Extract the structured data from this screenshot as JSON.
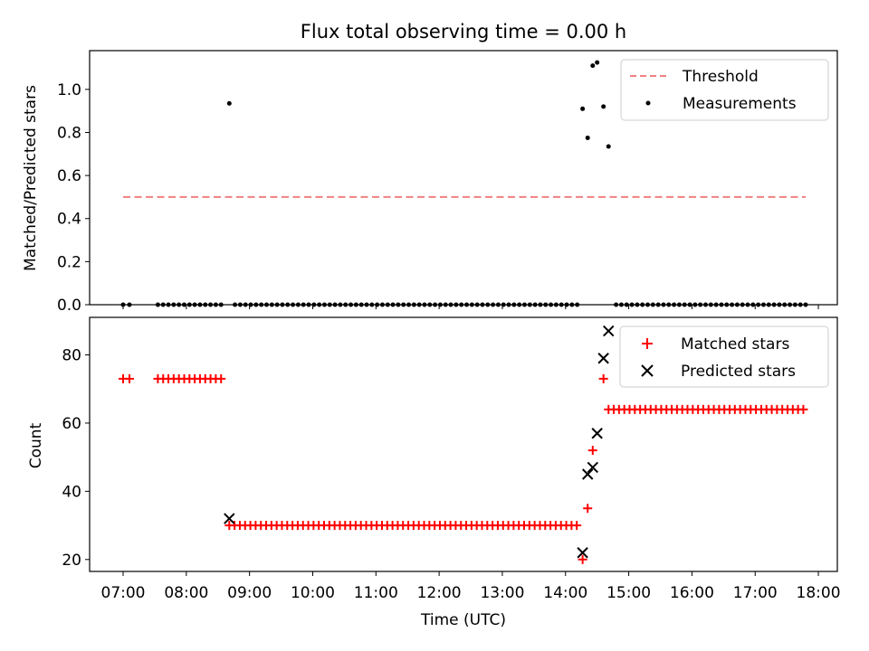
{
  "title": "Flux total observing time = 0.00 h",
  "chart_data": [
    {
      "type": "scatter",
      "ylabel": "Matched/Predicted stars",
      "xlabel": "",
      "xlim_hours": [
        6.47,
        18.3
      ],
      "ylim": [
        0.0,
        1.18
      ],
      "yticks": [
        0.0,
        0.2,
        0.4,
        0.6,
        0.8,
        1.0
      ],
      "ytick_labels": [
        "0.0",
        "0.2",
        "0.4",
        "0.6",
        "0.8",
        "1.0"
      ],
      "legend_position": "top-right",
      "threshold": {
        "name": "Threshold",
        "x": [
          7.0,
          17.8
        ],
        "y": 0.5,
        "color": "#f08080",
        "style": "dashed"
      },
      "measurements": {
        "name": "Measurements",
        "color": "#000000",
        "zero_groups": [
          {
            "start": 7.0,
            "end": 7.1,
            "step": 0.1
          },
          {
            "start": 7.55,
            "end": 8.6,
            "step": 0.0833
          },
          {
            "start": 8.77,
            "end": 14.23,
            "step": 0.0833
          },
          {
            "start": 14.8,
            "end": 17.8,
            "step": 0.0833
          }
        ],
        "points": [
          {
            "x": 8.68,
            "y": 0.935
          },
          {
            "x": 14.27,
            "y": 0.91
          },
          {
            "x": 14.35,
            "y": 0.775
          },
          {
            "x": 14.43,
            "y": 1.11
          },
          {
            "x": 14.5,
            "y": 1.125
          },
          {
            "x": 14.6,
            "y": 0.92
          },
          {
            "x": 14.68,
            "y": 0.735
          }
        ]
      }
    },
    {
      "type": "scatter",
      "ylabel": "Count",
      "xlabel": "Time (UTC)",
      "xlim_hours": [
        6.47,
        18.3
      ],
      "ylim": [
        16.5,
        91.0
      ],
      "yticks": [
        20,
        40,
        60,
        80
      ],
      "ytick_labels": [
        "20",
        "40",
        "60",
        "80"
      ],
      "xticks": [
        7,
        8,
        9,
        10,
        11,
        12,
        13,
        14,
        15,
        16,
        17,
        18
      ],
      "xtick_labels": [
        "07:00",
        "08:00",
        "09:00",
        "10:00",
        "11:00",
        "12:00",
        "13:00",
        "14:00",
        "15:00",
        "16:00",
        "17:00",
        "18:00"
      ],
      "legend_position": "top-right",
      "matched": {
        "name": "Matched stars",
        "color": "#ff0000",
        "groups": [
          {
            "start": 7.0,
            "end": 7.1,
            "step": 0.1,
            "value": 73
          },
          {
            "start": 7.55,
            "end": 8.6,
            "step": 0.0833,
            "value": 73
          },
          {
            "start": 8.68,
            "end": 14.23,
            "step": 0.0833,
            "value": 30
          },
          {
            "start": 14.68,
            "end": 17.8,
            "step": 0.0833,
            "value": 64
          }
        ],
        "points": [
          {
            "x": 14.27,
            "y": 20
          },
          {
            "x": 14.35,
            "y": 35
          },
          {
            "x": 14.43,
            "y": 52
          },
          {
            "x": 14.6,
            "y": 73
          }
        ]
      },
      "predicted": {
        "name": "Predicted stars",
        "color": "#000000",
        "points": [
          {
            "x": 8.68,
            "y": 32
          },
          {
            "x": 14.27,
            "y": 22
          },
          {
            "x": 14.35,
            "y": 45
          },
          {
            "x": 14.43,
            "y": 47
          },
          {
            "x": 14.5,
            "y": 57
          },
          {
            "x": 14.6,
            "y": 79
          },
          {
            "x": 14.68,
            "y": 87
          }
        ]
      }
    }
  ]
}
